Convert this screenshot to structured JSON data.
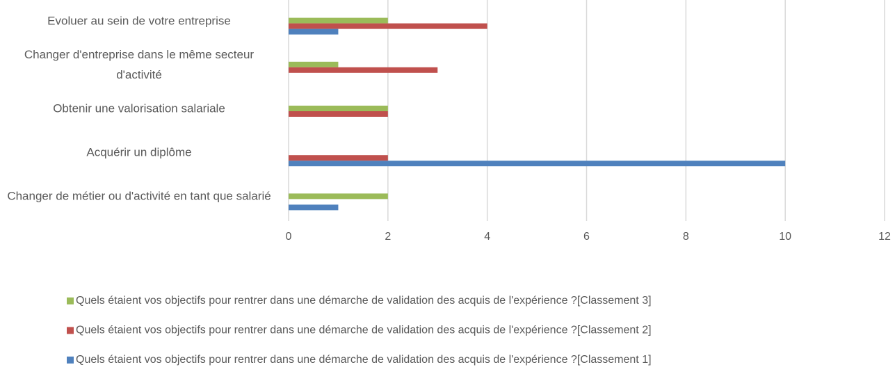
{
  "chart_data": {
    "type": "barh",
    "categories": [
      "Evoluer au sein de votre entreprise",
      "Changer d'entreprise dans le même secteur d'activité",
      "Obtenir une valorisation salariale",
      "Acquérir un diplôme",
      "Changer de métier ou d'activité en tant que salarié"
    ],
    "series": [
      {
        "name": "Quels étaient vos objectifs pour rentrer dans une démarche de validation des acquis de l'expérience ?[Classement 3]",
        "color": "#9bbb59",
        "values": [
          2,
          1,
          2,
          0,
          2
        ]
      },
      {
        "name": "Quels étaient vos objectifs pour rentrer dans une démarche de validation des acquis de l'expérience ?[Classement 2]",
        "color": "#c0504d",
        "values": [
          4,
          3,
          2,
          2,
          0
        ]
      },
      {
        "name": "Quels étaient vos objectifs pour rentrer dans une démarche de validation des acquis de l'expérience ?[Classement 1]",
        "color": "#4f81bd",
        "values": [
          1,
          0,
          0,
          10,
          1
        ]
      }
    ],
    "xlim": [
      0,
      12
    ],
    "xticks": [
      0,
      2,
      4,
      6,
      8,
      10,
      12
    ],
    "grid": true
  }
}
